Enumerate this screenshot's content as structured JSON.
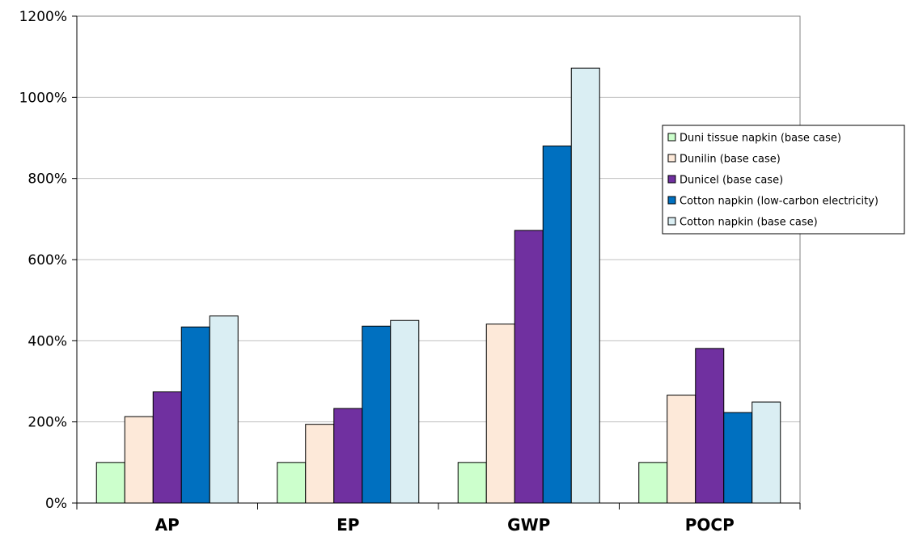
{
  "chart_data": {
    "type": "bar",
    "title": "",
    "xlabel": "",
    "ylabel": "",
    "categories": [
      "AP",
      "EP",
      "GWP",
      "POCP"
    ],
    "ylim": [
      0,
      1200
    ],
    "yticks": [
      0,
      200,
      400,
      600,
      800,
      1000,
      1200
    ],
    "yticklabels": [
      "0%",
      "200%",
      "400%",
      "600%",
      "800%",
      "1000%",
      "1200%"
    ],
    "grid": true,
    "legend_position": "right",
    "series": [
      {
        "name": "Duni tissue napkin (base case)",
        "color": "#ccffcc",
        "values": [
          100,
          100,
          100,
          100
        ]
      },
      {
        "name": "Dunilin (base case)",
        "color": "#fde9d9",
        "values": [
          213,
          194,
          441,
          266
        ]
      },
      {
        "name": "Dunicel (base case)",
        "color": "#7030a0",
        "values": [
          274,
          233,
          672,
          381
        ]
      },
      {
        "name": "Cotton napkin (low-carbon electricity)",
        "color": "#0070c0",
        "values": [
          434,
          436,
          880,
          223
        ]
      },
      {
        "name": "Cotton napkin (base case)",
        "color": "#daeef3",
        "values": [
          461,
          450,
          1072,
          249
        ]
      }
    ]
  }
}
